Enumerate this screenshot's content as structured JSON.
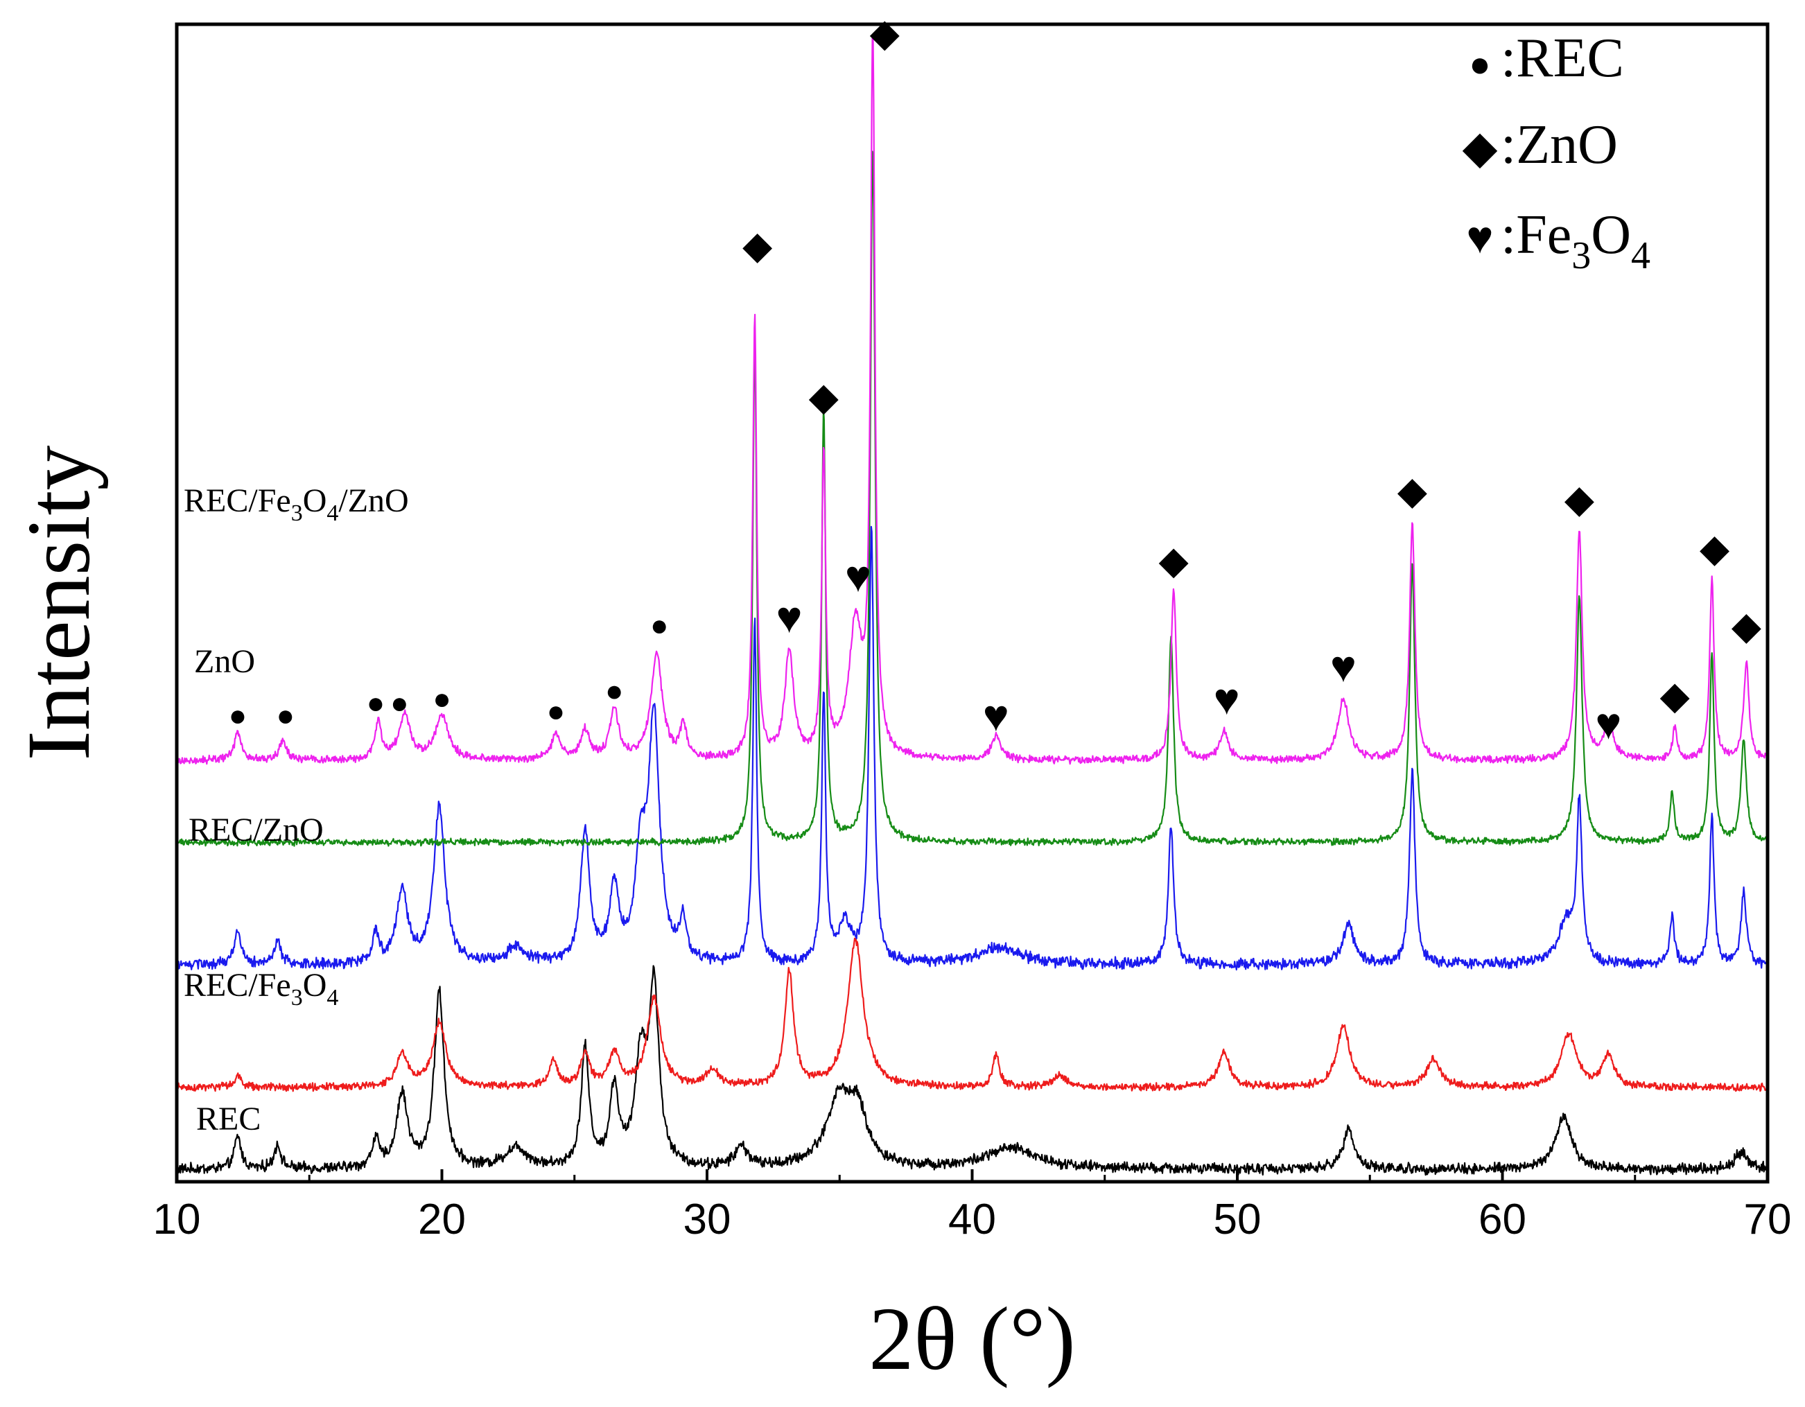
{
  "chart_data": {
    "type": "line",
    "title": "",
    "xlabel": "2θ (°)",
    "ylabel": "Intensity",
    "xlim": [
      10,
      70
    ],
    "xticks": [
      "10",
      "20",
      "30",
      "40",
      "50",
      "60",
      "70"
    ],
    "yticks": [],
    "grid": false,
    "legend_position": "top-right",
    "legend": [
      {
        "symbol": "circle",
        "symbol_char": "●",
        "label": ":REC",
        "formula": [
          {
            "t": ":REC"
          }
        ]
      },
      {
        "symbol": "diamond",
        "symbol_char": "◆",
        "label": ":ZnO",
        "formula": [
          {
            "t": ":ZnO"
          }
        ]
      },
      {
        "symbol": "heart",
        "symbol_char": "♥",
        "label": ":Fe3O4",
        "formula": [
          {
            "t": ":Fe"
          },
          {
            "t": "3",
            "sub": true
          },
          {
            "t": "O"
          },
          {
            "t": "4",
            "sub": true
          }
        ]
      }
    ],
    "series": [
      {
        "name": "REC",
        "formula": [
          {
            "t": "REC"
          }
        ],
        "color": "#000000",
        "baseline": 0.0,
        "noise": 0.1,
        "peaks": [
          {
            "x": 12.3,
            "h": 0.4,
            "w": 0.15
          },
          {
            "x": 13.8,
            "h": 0.3,
            "w": 0.15
          },
          {
            "x": 17.5,
            "h": 0.35,
            "w": 0.15
          },
          {
            "x": 18.5,
            "h": 0.9,
            "w": 0.25
          },
          {
            "x": 19.9,
            "h": 2.15,
            "w": 0.22
          },
          {
            "x": 22.8,
            "h": 0.25,
            "w": 0.5
          },
          {
            "x": 25.4,
            "h": 1.45,
            "w": 0.18
          },
          {
            "x": 26.5,
            "h": 0.95,
            "w": 0.2
          },
          {
            "x": 27.5,
            "h": 1.3,
            "w": 0.25
          },
          {
            "x": 28.0,
            "h": 2.15,
            "w": 0.22
          },
          {
            "x": 31.3,
            "h": 0.25,
            "w": 0.3
          },
          {
            "x": 35.0,
            "h": 0.85,
            "w": 0.6
          },
          {
            "x": 35.7,
            "h": 0.55,
            "w": 0.4
          },
          {
            "x": 41.5,
            "h": 0.25,
            "w": 1.2
          },
          {
            "x": 54.2,
            "h": 0.5,
            "w": 0.25
          },
          {
            "x": 62.3,
            "h": 0.65,
            "w": 0.35
          },
          {
            "x": 69.0,
            "h": 0.2,
            "w": 0.3
          }
        ]
      },
      {
        "name": "REC/Fe3O4",
        "formula": [
          {
            "t": "REC/Fe"
          },
          {
            "t": "3",
            "sub": true
          },
          {
            "t": "O"
          },
          {
            "t": "4",
            "sub": true
          }
        ],
        "color": "#ee1c1c",
        "baseline": 1.0,
        "noise": 0.07,
        "peaks": [
          {
            "x": 12.3,
            "h": 0.15,
            "w": 0.15
          },
          {
            "x": 18.5,
            "h": 0.4,
            "w": 0.25
          },
          {
            "x": 19.9,
            "h": 0.8,
            "w": 0.3
          },
          {
            "x": 24.2,
            "h": 0.3,
            "w": 0.2
          },
          {
            "x": 25.4,
            "h": 0.4,
            "w": 0.2
          },
          {
            "x": 26.5,
            "h": 0.4,
            "w": 0.25
          },
          {
            "x": 28.0,
            "h": 1.1,
            "w": 0.3
          },
          {
            "x": 30.2,
            "h": 0.2,
            "w": 0.3
          },
          {
            "x": 33.1,
            "h": 1.4,
            "w": 0.2
          },
          {
            "x": 35.6,
            "h": 1.8,
            "w": 0.35
          },
          {
            "x": 40.9,
            "h": 0.4,
            "w": 0.15
          },
          {
            "x": 43.3,
            "h": 0.15,
            "w": 0.3
          },
          {
            "x": 49.5,
            "h": 0.45,
            "w": 0.25
          },
          {
            "x": 54.0,
            "h": 0.75,
            "w": 0.3
          },
          {
            "x": 57.4,
            "h": 0.35,
            "w": 0.3
          },
          {
            "x": 62.5,
            "h": 0.65,
            "w": 0.35
          },
          {
            "x": 64.0,
            "h": 0.4,
            "w": 0.25
          }
        ]
      },
      {
        "name": "REC/ZnO",
        "formula": [
          {
            "t": "REC/ZnO"
          }
        ],
        "color": "#1a1aee",
        "baseline": 2.5,
        "noise": 0.1,
        "peaks": [
          {
            "x": 12.3,
            "h": 0.4,
            "w": 0.15
          },
          {
            "x": 13.8,
            "h": 0.3,
            "w": 0.15
          },
          {
            "x": 17.5,
            "h": 0.35,
            "w": 0.15
          },
          {
            "x": 18.5,
            "h": 0.9,
            "w": 0.25
          },
          {
            "x": 19.9,
            "h": 1.9,
            "w": 0.25
          },
          {
            "x": 22.8,
            "h": 0.2,
            "w": 0.4
          },
          {
            "x": 25.4,
            "h": 1.6,
            "w": 0.2
          },
          {
            "x": 26.5,
            "h": 0.9,
            "w": 0.2
          },
          {
            "x": 27.5,
            "h": 1.2,
            "w": 0.25
          },
          {
            "x": 28.0,
            "h": 2.9,
            "w": 0.25
          },
          {
            "x": 29.1,
            "h": 0.5,
            "w": 0.15
          },
          {
            "x": 31.8,
            "h": 4.2,
            "w": 0.09
          },
          {
            "x": 34.4,
            "h": 3.3,
            "w": 0.09
          },
          {
            "x": 35.2,
            "h": 0.5,
            "w": 0.3
          },
          {
            "x": 36.2,
            "h": 5.3,
            "w": 0.11
          },
          {
            "x": 41.0,
            "h": 0.2,
            "w": 1.0
          },
          {
            "x": 47.5,
            "h": 1.7,
            "w": 0.12
          },
          {
            "x": 54.2,
            "h": 0.5,
            "w": 0.25
          },
          {
            "x": 56.6,
            "h": 2.4,
            "w": 0.12
          },
          {
            "x": 62.4,
            "h": 0.5,
            "w": 0.35
          },
          {
            "x": 62.9,
            "h": 1.9,
            "w": 0.12
          },
          {
            "x": 66.4,
            "h": 0.6,
            "w": 0.1
          },
          {
            "x": 67.9,
            "h": 1.8,
            "w": 0.1
          },
          {
            "x": 69.1,
            "h": 0.9,
            "w": 0.12
          }
        ]
      },
      {
        "name": "ZnO",
        "formula": [
          {
            "t": "ZnO"
          }
        ],
        "color": "#168c16",
        "baseline": 4.0,
        "noise": 0.06,
        "peaks": [
          {
            "x": 31.8,
            "h": 6.2,
            "w": 0.09
          },
          {
            "x": 34.4,
            "h": 5.3,
            "w": 0.09
          },
          {
            "x": 36.25,
            "h": 8.5,
            "w": 0.11
          },
          {
            "x": 47.5,
            "h": 2.5,
            "w": 0.12
          },
          {
            "x": 56.6,
            "h": 3.4,
            "w": 0.12
          },
          {
            "x": 62.9,
            "h": 3.0,
            "w": 0.13
          },
          {
            "x": 66.4,
            "h": 0.6,
            "w": 0.1
          },
          {
            "x": 67.9,
            "h": 2.3,
            "w": 0.1
          },
          {
            "x": 69.1,
            "h": 1.25,
            "w": 0.12
          }
        ]
      },
      {
        "name": "REC/Fe3O4/ZnO",
        "formula": [
          {
            "t": "REC/Fe"
          },
          {
            "t": "3",
            "sub": true
          },
          {
            "t": "O"
          },
          {
            "t": "4",
            "sub": true
          },
          {
            "t": "/ZnO"
          }
        ],
        "color": "#ee22ee",
        "baseline": 5.0,
        "noise": 0.07,
        "peaks": [
          {
            "x": 12.3,
            "h": 0.35,
            "w": 0.15
          },
          {
            "x": 14.0,
            "h": 0.25,
            "w": 0.15
          },
          {
            "x": 17.6,
            "h": 0.45,
            "w": 0.15
          },
          {
            "x": 18.6,
            "h": 0.55,
            "w": 0.25
          },
          {
            "x": 20.0,
            "h": 0.55,
            "w": 0.3
          },
          {
            "x": 24.3,
            "h": 0.3,
            "w": 0.2
          },
          {
            "x": 25.4,
            "h": 0.35,
            "w": 0.2
          },
          {
            "x": 26.5,
            "h": 0.6,
            "w": 0.2
          },
          {
            "x": 28.1,
            "h": 1.3,
            "w": 0.25
          },
          {
            "x": 29.1,
            "h": 0.4,
            "w": 0.15
          },
          {
            "x": 31.8,
            "h": 5.4,
            "w": 0.09
          },
          {
            "x": 33.1,
            "h": 1.3,
            "w": 0.2
          },
          {
            "x": 34.4,
            "h": 3.7,
            "w": 0.09
          },
          {
            "x": 35.6,
            "h": 1.6,
            "w": 0.3
          },
          {
            "x": 36.25,
            "h": 8.7,
            "w": 0.1
          },
          {
            "x": 40.9,
            "h": 0.3,
            "w": 0.2
          },
          {
            "x": 47.6,
            "h": 2.1,
            "w": 0.12
          },
          {
            "x": 49.5,
            "h": 0.35,
            "w": 0.2
          },
          {
            "x": 54.0,
            "h": 0.75,
            "w": 0.25
          },
          {
            "x": 56.6,
            "h": 2.9,
            "w": 0.12
          },
          {
            "x": 62.9,
            "h": 2.8,
            "w": 0.13
          },
          {
            "x": 64.0,
            "h": 0.4,
            "w": 0.25
          },
          {
            "x": 66.5,
            "h": 0.4,
            "w": 0.1
          },
          {
            "x": 67.9,
            "h": 2.2,
            "w": 0.1
          },
          {
            "x": 69.2,
            "h": 1.2,
            "w": 0.12
          }
        ]
      }
    ],
    "annotations": [
      {
        "symbol": "circle",
        "char": "●",
        "x": 12.3,
        "y": 5.55
      },
      {
        "symbol": "circle",
        "char": "●",
        "x": 14.1,
        "y": 5.55
      },
      {
        "symbol": "circle",
        "char": "●",
        "x": 17.5,
        "y": 5.7
      },
      {
        "symbol": "circle",
        "char": "●",
        "x": 18.4,
        "y": 5.7
      },
      {
        "symbol": "circle",
        "char": "●",
        "x": 20.0,
        "y": 5.75
      },
      {
        "symbol": "circle",
        "char": "●",
        "x": 24.3,
        "y": 5.6
      },
      {
        "symbol": "circle",
        "char": "●",
        "x": 26.5,
        "y": 5.85
      },
      {
        "symbol": "circle",
        "char": "●",
        "x": 28.2,
        "y": 6.65
      },
      {
        "symbol": "diamond",
        "char": "◆",
        "x": 31.9,
        "y": 11.3
      },
      {
        "symbol": "heart",
        "char": "♥",
        "x": 33.1,
        "y": 6.75
      },
      {
        "symbol": "diamond",
        "char": "◆",
        "x": 34.4,
        "y": 9.45
      },
      {
        "symbol": "heart",
        "char": "♥",
        "x": 35.7,
        "y": 7.25
      },
      {
        "symbol": "diamond",
        "char": "◆",
        "x": 36.7,
        "y": 13.9
      },
      {
        "symbol": "heart",
        "char": "♥",
        "x": 40.9,
        "y": 5.55
      },
      {
        "symbol": "diamond",
        "char": "◆",
        "x": 47.6,
        "y": 7.45
      },
      {
        "symbol": "heart",
        "char": "♥",
        "x": 49.6,
        "y": 5.75
      },
      {
        "symbol": "heart",
        "char": "♥",
        "x": 54.0,
        "y": 6.15
      },
      {
        "symbol": "diamond",
        "char": "◆",
        "x": 56.6,
        "y": 8.3
      },
      {
        "symbol": "diamond",
        "char": "◆",
        "x": 62.9,
        "y": 8.2
      },
      {
        "symbol": "heart",
        "char": "♥",
        "x": 64.0,
        "y": 5.45
      },
      {
        "symbol": "diamond",
        "char": "◆",
        "x": 66.5,
        "y": 5.8
      },
      {
        "symbol": "diamond",
        "char": "◆",
        "x": 68.0,
        "y": 7.6
      },
      {
        "symbol": "diamond",
        "char": "◆",
        "x": 69.2,
        "y": 6.65
      }
    ]
  }
}
